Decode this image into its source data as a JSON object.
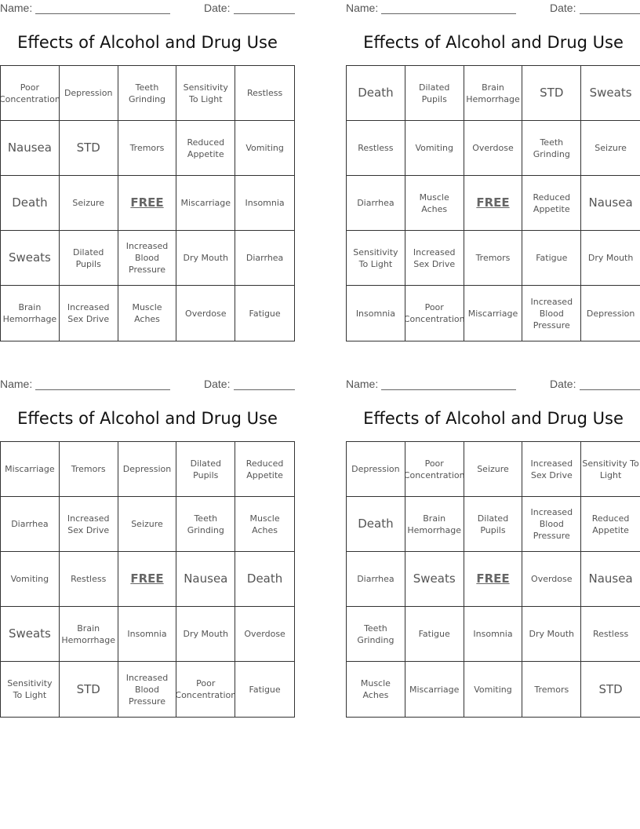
{
  "labels": {
    "name": "Name: ",
    "date": "Date: "
  },
  "cards": [
    {
      "title": "Effects of Alcohol and Drug Use",
      "cells": [
        "Poor Concentration",
        "Depression",
        "Teeth Grinding",
        "Sensitivity To Light",
        "Restless",
        "Nausea",
        "STD",
        "Tremors",
        "Reduced Appetite",
        "Vomiting",
        "Death",
        "Seizure",
        "FREE",
        "Miscarriage",
        "Insomnia",
        "Sweats",
        "Dilated Pupils",
        "Increased Blood Pressure",
        "Dry Mouth",
        "Diarrhea",
        "Brain Hemorrhage",
        "Increased Sex Drive",
        "Muscle Aches",
        "Overdose",
        "Fatigue"
      ]
    },
    {
      "title": "Effects of Alcohol and Drug Use",
      "cells": [
        "Death",
        "Dilated Pupils",
        "Brain Hemorrhage",
        "STD",
        "Sweats",
        "Restless",
        "Vomiting",
        "Overdose",
        "Teeth Grinding",
        "Seizure",
        "Diarrhea",
        "Muscle Aches",
        "FREE",
        "Reduced Appetite",
        "Nausea",
        "Sensitivity To Light",
        "Increased Sex Drive",
        "Tremors",
        "Fatigue",
        "Dry Mouth",
        "Insomnia",
        "Poor Concentration",
        "Miscarriage",
        "Increased Blood Pressure",
        "Depression"
      ]
    },
    {
      "title": "Effects of Alcohol and Drug Use",
      "cells": [
        "Miscarriage",
        "Tremors",
        "Depression",
        "Dilated Pupils",
        "Reduced Appetite",
        "Diarrhea",
        "Increased Sex Drive",
        "Seizure",
        "Teeth Grinding",
        "Muscle Aches",
        "Vomiting",
        "Restless",
        "FREE",
        "Nausea",
        "Death",
        "Sweats",
        "Brain Hemorrhage",
        "Insomnia",
        "Dry Mouth",
        "Overdose",
        "Sensitivity To Light",
        "STD",
        "Increased Blood Pressure",
        "Poor Concentration",
        "Fatigue"
      ]
    },
    {
      "title": "Effects of Alcohol and Drug Use",
      "cells": [
        "Depression",
        "Poor Concentration",
        "Seizure",
        "Increased Sex Drive",
        "Sensitivity To Light",
        "Death",
        "Brain Hemorrhage",
        "Dilated Pupils",
        "Increased Blood Pressure",
        "Reduced Appetite",
        "Diarrhea",
        "Sweats",
        "FREE",
        "Overdose",
        "Nausea",
        "Teeth Grinding",
        "Fatigue",
        "Insomnia",
        "Dry Mouth",
        "Restless",
        "Muscle Aches",
        "Miscarriage",
        "Vomiting",
        "Tremors",
        "STD"
      ]
    }
  ]
}
